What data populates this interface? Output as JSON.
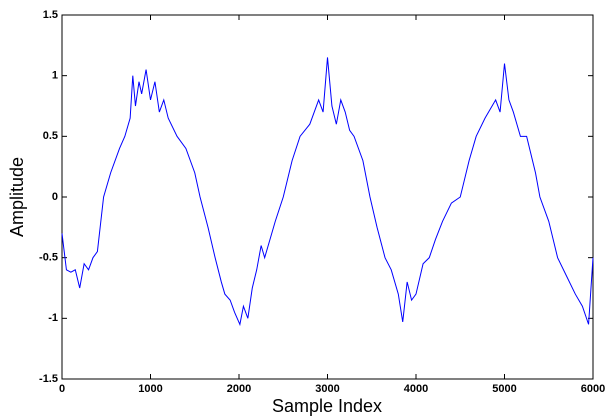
{
  "chart_data": {
    "type": "line",
    "x_label": "Sample Index",
    "y_label": "Amplitude",
    "x": [
      0,
      50,
      100,
      150,
      200,
      250,
      300,
      350,
      400,
      470,
      550,
      650,
      710,
      770,
      800,
      830,
      870,
      900,
      950,
      1000,
      1050,
      1100,
      1150,
      1200,
      1300,
      1400,
      1500,
      1560,
      1650,
      1730,
      1800,
      1840,
      1900,
      1950,
      2010,
      2050,
      2100,
      2150,
      2200,
      2250,
      2290,
      2350,
      2410,
      2500,
      2600,
      2690,
      2800,
      2900,
      2950,
      3000,
      3050,
      3100,
      3150,
      3200,
      3250,
      3300,
      3400,
      3480,
      3560,
      3650,
      3720,
      3800,
      3850,
      3900,
      3950,
      4000,
      4080,
      4150,
      4220,
      4300,
      4400,
      4500,
      4600,
      4680,
      4780,
      4900,
      4950,
      5000,
      5050,
      5100,
      5180,
      5250,
      5350,
      5400,
      5500,
      5600,
      5700,
      5800,
      5880,
      5950,
      6000
    ],
    "series": [
      {
        "color": "#0000ff",
        "values": [
          -0.3,
          -0.6,
          -0.62,
          -0.6,
          -0.75,
          -0.55,
          -0.6,
          -0.5,
          -0.45,
          0,
          0.2,
          0.4,
          0.5,
          0.65,
          1.0,
          0.75,
          0.95,
          0.85,
          1.05,
          0.8,
          0.95,
          0.7,
          0.8,
          0.65,
          0.5,
          0.4,
          0.2,
          0,
          -0.25,
          -0.5,
          -0.7,
          -0.8,
          -0.85,
          -0.95,
          -1.05,
          -0.9,
          -1.0,
          -0.75,
          -0.6,
          -0.4,
          -0.5,
          -0.35,
          -0.2,
          0,
          0.3,
          0.5,
          0.6,
          0.8,
          0.7,
          1.15,
          0.75,
          0.6,
          0.8,
          0.7,
          0.55,
          0.5,
          0.3,
          0,
          -0.25,
          -0.5,
          -0.6,
          -0.8,
          -1.03,
          -0.7,
          -0.85,
          -0.8,
          -0.55,
          -0.5,
          -0.35,
          -0.2,
          -0.05,
          0,
          0.3,
          0.5,
          0.65,
          0.8,
          0.7,
          1.1,
          0.8,
          0.7,
          0.5,
          0.5,
          0.2,
          0,
          -0.2,
          -0.5,
          -0.65,
          -0.8,
          -0.9,
          -1.05,
          -0.5
        ]
      }
    ],
    "xlim": [
      0,
      6000
    ],
    "ylim": [
      -1.5,
      1.5
    ],
    "xticks": [
      0,
      1000,
      2000,
      3000,
      4000,
      5000,
      6000
    ],
    "yticks": [
      -1.5,
      -1,
      -0.5,
      0,
      0.5,
      1,
      1.5
    ]
  }
}
